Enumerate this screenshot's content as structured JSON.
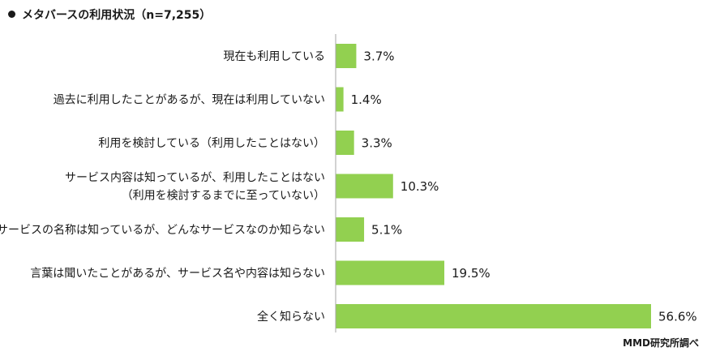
{
  "title": "メタバースの利用状況（n=7,255）",
  "source": "MMD研究所調べ",
  "chart_data": {
    "type": "bar",
    "orientation": "horizontal",
    "title": "メタバースの利用状況（n=7,255）",
    "categories": [
      [
        "現在も利用している"
      ],
      [
        "過去に利用したことがあるが、現在は利用していない"
      ],
      [
        "利用を検討している（利用したことはない）"
      ],
      [
        "サービス内容は知っているが、利用したことはない",
        "（利用を検討するまでに至っていない）"
      ],
      [
        "サービスの名称は知っているが、どんなサービスなのか知らない"
      ],
      [
        "言葉は聞いたことがあるが、サービス名や内容は知らない"
      ],
      [
        "全く知らない"
      ]
    ],
    "values": [
      3.7,
      1.4,
      3.3,
      10.3,
      5.1,
      19.5,
      56.6
    ],
    "value_labels": [
      "3.7%",
      "1.4%",
      "3.3%",
      "10.3%",
      "5.1%",
      "19.5%",
      "56.6%"
    ],
    "unit": "%",
    "xlim": [
      0,
      56.6
    ],
    "grid": false,
    "bar_color": "#92d050",
    "axis_color": "#a6a6a6"
  }
}
